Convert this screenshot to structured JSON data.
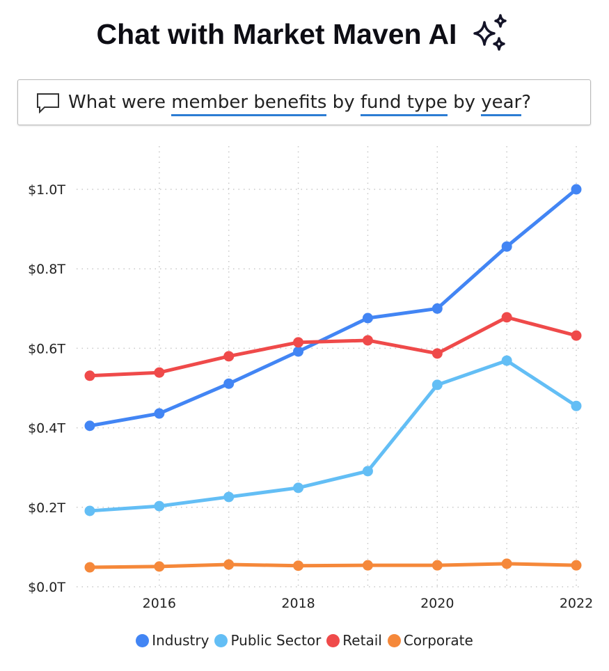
{
  "header": {
    "title": "Chat with Market Maven AI",
    "icon": "sparkles-icon"
  },
  "query": {
    "icon": "chat-bubble-icon",
    "segments": [
      {
        "text": "What were ",
        "underline": false
      },
      {
        "text": "member benefits",
        "underline": true
      },
      {
        "text": " by ",
        "underline": false
      },
      {
        "text": "fund type",
        "underline": true
      },
      {
        "text": " by ",
        "underline": false
      },
      {
        "text": "year",
        "underline": true
      },
      {
        "text": "?",
        "underline": false
      }
    ]
  },
  "chart_data": {
    "type": "line",
    "x": [
      2015,
      2016,
      2017,
      2018,
      2019,
      2020,
      2021,
      2022
    ],
    "xticks": [
      "2016",
      "2018",
      "2020",
      "2022"
    ],
    "yticks": [
      "$0.0T",
      "$0.2T",
      "$0.4T",
      "$0.6T",
      "$0.8T",
      "$1.0T"
    ],
    "ylim": [
      0,
      1.0
    ],
    "xlim": [
      2015,
      2022
    ],
    "grid": true,
    "legend": "bottom",
    "series": [
      {
        "name": "Industry",
        "color": "#4285f4",
        "values": [
          0.405,
          0.436,
          0.511,
          0.592,
          0.676,
          0.7,
          0.856,
          1.0
        ]
      },
      {
        "name": "Public Sector",
        "color": "#63bef5",
        "values": [
          0.191,
          0.203,
          0.226,
          0.249,
          0.291,
          0.508,
          0.569,
          0.455
        ]
      },
      {
        "name": "Retail",
        "color": "#ef4a4a",
        "values": [
          0.531,
          0.539,
          0.58,
          0.615,
          0.62,
          0.587,
          0.678,
          0.632
        ]
      },
      {
        "name": "Corporate",
        "color": "#f5883a",
        "values": [
          0.049,
          0.051,
          0.056,
          0.053,
          0.054,
          0.054,
          0.058,
          0.054
        ]
      }
    ]
  }
}
